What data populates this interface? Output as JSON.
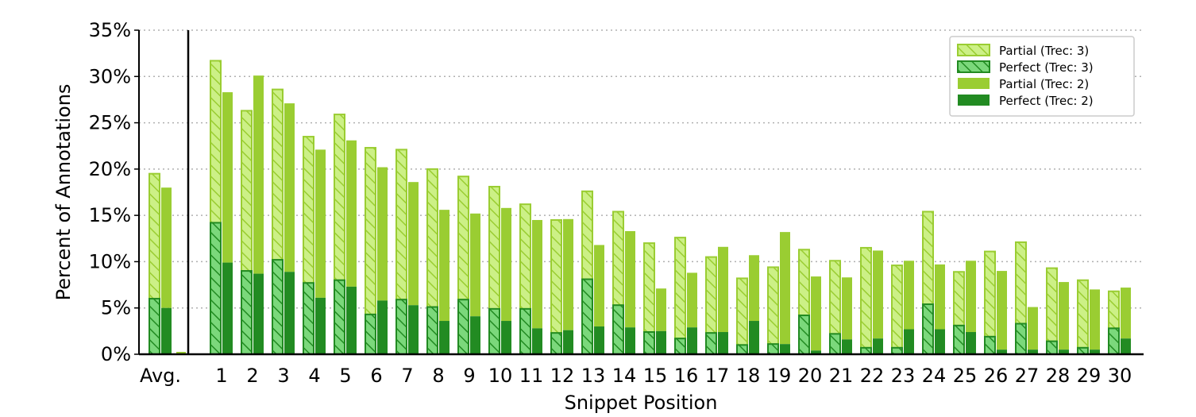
{
  "chart_data": {
    "type": "bar",
    "stacked": true,
    "grouped": true,
    "xlabel": "Snippet Position",
    "ylabel": "Percent of Annotations",
    "ylim": [
      0,
      35
    ],
    "yticks": [
      0,
      5,
      10,
      15,
      20,
      25,
      30,
      35
    ],
    "ytick_labels": [
      "0%",
      "5%",
      "10%",
      "15%",
      "20%",
      "25%",
      "30%",
      "35%"
    ],
    "grid": "horizontal dotted",
    "legend_position": "top-right",
    "categories": [
      "Avg.",
      "1",
      "2",
      "3",
      "4",
      "5",
      "6",
      "7",
      "8",
      "9",
      "10",
      "11",
      "12",
      "13",
      "14",
      "15",
      "16",
      "17",
      "18",
      "19",
      "20",
      "21",
      "22",
      "23",
      "24",
      "25",
      "26",
      "27",
      "28",
      "29",
      "30"
    ],
    "groups": [
      {
        "name": "Trec: 3",
        "perfect": [
          6.0,
          14.2,
          9.0,
          10.2,
          7.7,
          8.0,
          4.3,
          5.9,
          5.1,
          5.9,
          4.9,
          4.9,
          2.3,
          8.1,
          5.3,
          2.4,
          1.7,
          2.3,
          1.0,
          1.1,
          4.2,
          2.2,
          0.7,
          0.7,
          5.4,
          3.1,
          1.9,
          3.3,
          1.4,
          0.7,
          2.8
        ],
        "total": [
          19.5,
          31.7,
          26.3,
          28.6,
          23.5,
          25.9,
          22.3,
          22.1,
          20.0,
          19.2,
          18.1,
          16.2,
          14.5,
          17.6,
          15.4,
          12.0,
          12.6,
          10.5,
          8.2,
          9.4,
          11.3,
          10.1,
          11.5,
          9.6,
          15.4,
          8.9,
          11.1,
          12.1,
          9.3,
          8.0,
          6.8
        ],
        "colors": {
          "perfect": "#7bd87b",
          "partial": "#ccf086",
          "edge_perfect": "#228b22",
          "edge_partial": "#9acd32"
        }
      },
      {
        "name": "Trec: 2",
        "perfect": [
          5.0,
          9.9,
          8.7,
          8.9,
          6.1,
          7.3,
          5.8,
          5.3,
          3.6,
          4.1,
          3.6,
          2.8,
          2.6,
          3.0,
          2.9,
          2.5,
          2.9,
          2.4,
          3.6,
          1.1,
          0.4,
          1.6,
          1.7,
          2.7,
          2.7,
          2.4,
          0.5,
          0.5,
          0.5,
          0.5,
          1.7
        ],
        "total": [
          18.0,
          28.3,
          30.1,
          27.1,
          22.1,
          23.1,
          20.2,
          18.6,
          15.6,
          15.2,
          15.8,
          14.5,
          14.6,
          11.8,
          13.3,
          7.1,
          8.8,
          11.6,
          10.7,
          13.2,
          8.4,
          8.3,
          11.2,
          10.1,
          9.7,
          10.1,
          9.0,
          5.1,
          7.8,
          7.0,
          7.2
        ],
        "colors": {
          "perfect": "#228b22",
          "partial": "#9acd32"
        }
      }
    ],
    "legend": [
      {
        "label": "Partial (Trec: 3)",
        "style": "hatch-light"
      },
      {
        "label": "Perfect (Trec: 3)",
        "style": "hatch-dark"
      },
      {
        "label": "Partial (Trec: 2)",
        "style": "solid-light"
      },
      {
        "label": "Perfect (Trec: 2)",
        "style": "solid-dark"
      }
    ]
  }
}
